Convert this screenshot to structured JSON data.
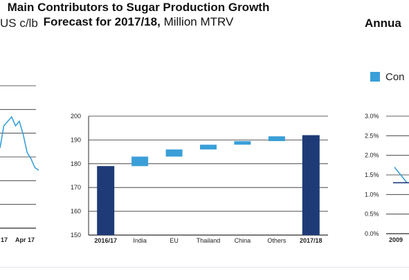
{
  "left_panel": {
    "title_fragment": "US c/lb",
    "x_tick_labels": [
      "17",
      "Apr 17"
    ]
  },
  "main_panel": {
    "title_bold": "Main Contributors to Sugar Production Growth Forecast for 2017/18,",
    "title_unit": "Million MTRV"
  },
  "right_panel": {
    "title_fragment": "Annua",
    "legend_label": "Con",
    "y_tick_labels": [
      "3.0%",
      "2.5%",
      "2.0%",
      "1.5%",
      "1.0%",
      "0.5%",
      "0.0%"
    ],
    "x_tick_labels": [
      "2009"
    ]
  },
  "colors": {
    "dark_bar": "#1e3b78",
    "light_bar": "#3a9fd8",
    "gridline": "#2a2a2a"
  },
  "chart_data": [
    {
      "type": "line",
      "title": "",
      "xlabel": "",
      "ylabel": "US c/lb",
      "x_ticks": [
        "17",
        "Apr 17"
      ],
      "series": [
        {
          "values": [
            19,
            21.5,
            22,
            22.5,
            21.5,
            22,
            20.5,
            18.5,
            17.8,
            16.8,
            16.5
          ]
        }
      ]
    },
    {
      "type": "bar",
      "title": "Main Contributors to Sugar Production Growth Forecast for 2017/18, Million MTRV",
      "xlabel": "",
      "ylabel": "",
      "ylim": [
        150,
        200
      ],
      "yticks": [
        150,
        160,
        170,
        180,
        190,
        200
      ],
      "categories": [
        "2016/17",
        "India",
        "EU",
        "Thailand",
        "China",
        "Others",
        "2017/18"
      ],
      "bold_categories": [
        "2016/17",
        "2017/18"
      ],
      "bars": [
        {
          "category": "2016/17",
          "start": 150,
          "end": 179,
          "kind": "total"
        },
        {
          "category": "India",
          "start": 179,
          "end": 183,
          "kind": "change"
        },
        {
          "category": "EU",
          "start": 183,
          "end": 186,
          "kind": "change"
        },
        {
          "category": "Thailand",
          "start": 186,
          "end": 188,
          "kind": "change"
        },
        {
          "category": "China",
          "start": 188,
          "end": 189.5,
          "kind": "change"
        },
        {
          "category": "Others",
          "start": 189.5,
          "end": 191.5,
          "kind": "change"
        },
        {
          "category": "2017/18",
          "start": 150,
          "end": 192,
          "kind": "total"
        }
      ],
      "grid": true
    },
    {
      "type": "line",
      "title": "Annua",
      "ylim": [
        0,
        3
      ],
      "yticks": [
        "0.0%",
        "0.5%",
        "1.0%",
        "1.5%",
        "2.0%",
        "2.5%",
        "3.0%"
      ],
      "x_ticks": [
        "2009"
      ],
      "legend": [
        "Con"
      ],
      "series": [
        {
          "name": "Con",
          "values": [
            1.7,
            1.3
          ]
        },
        {
          "values": [
            1.3,
            1.3
          ]
        }
      ]
    }
  ]
}
